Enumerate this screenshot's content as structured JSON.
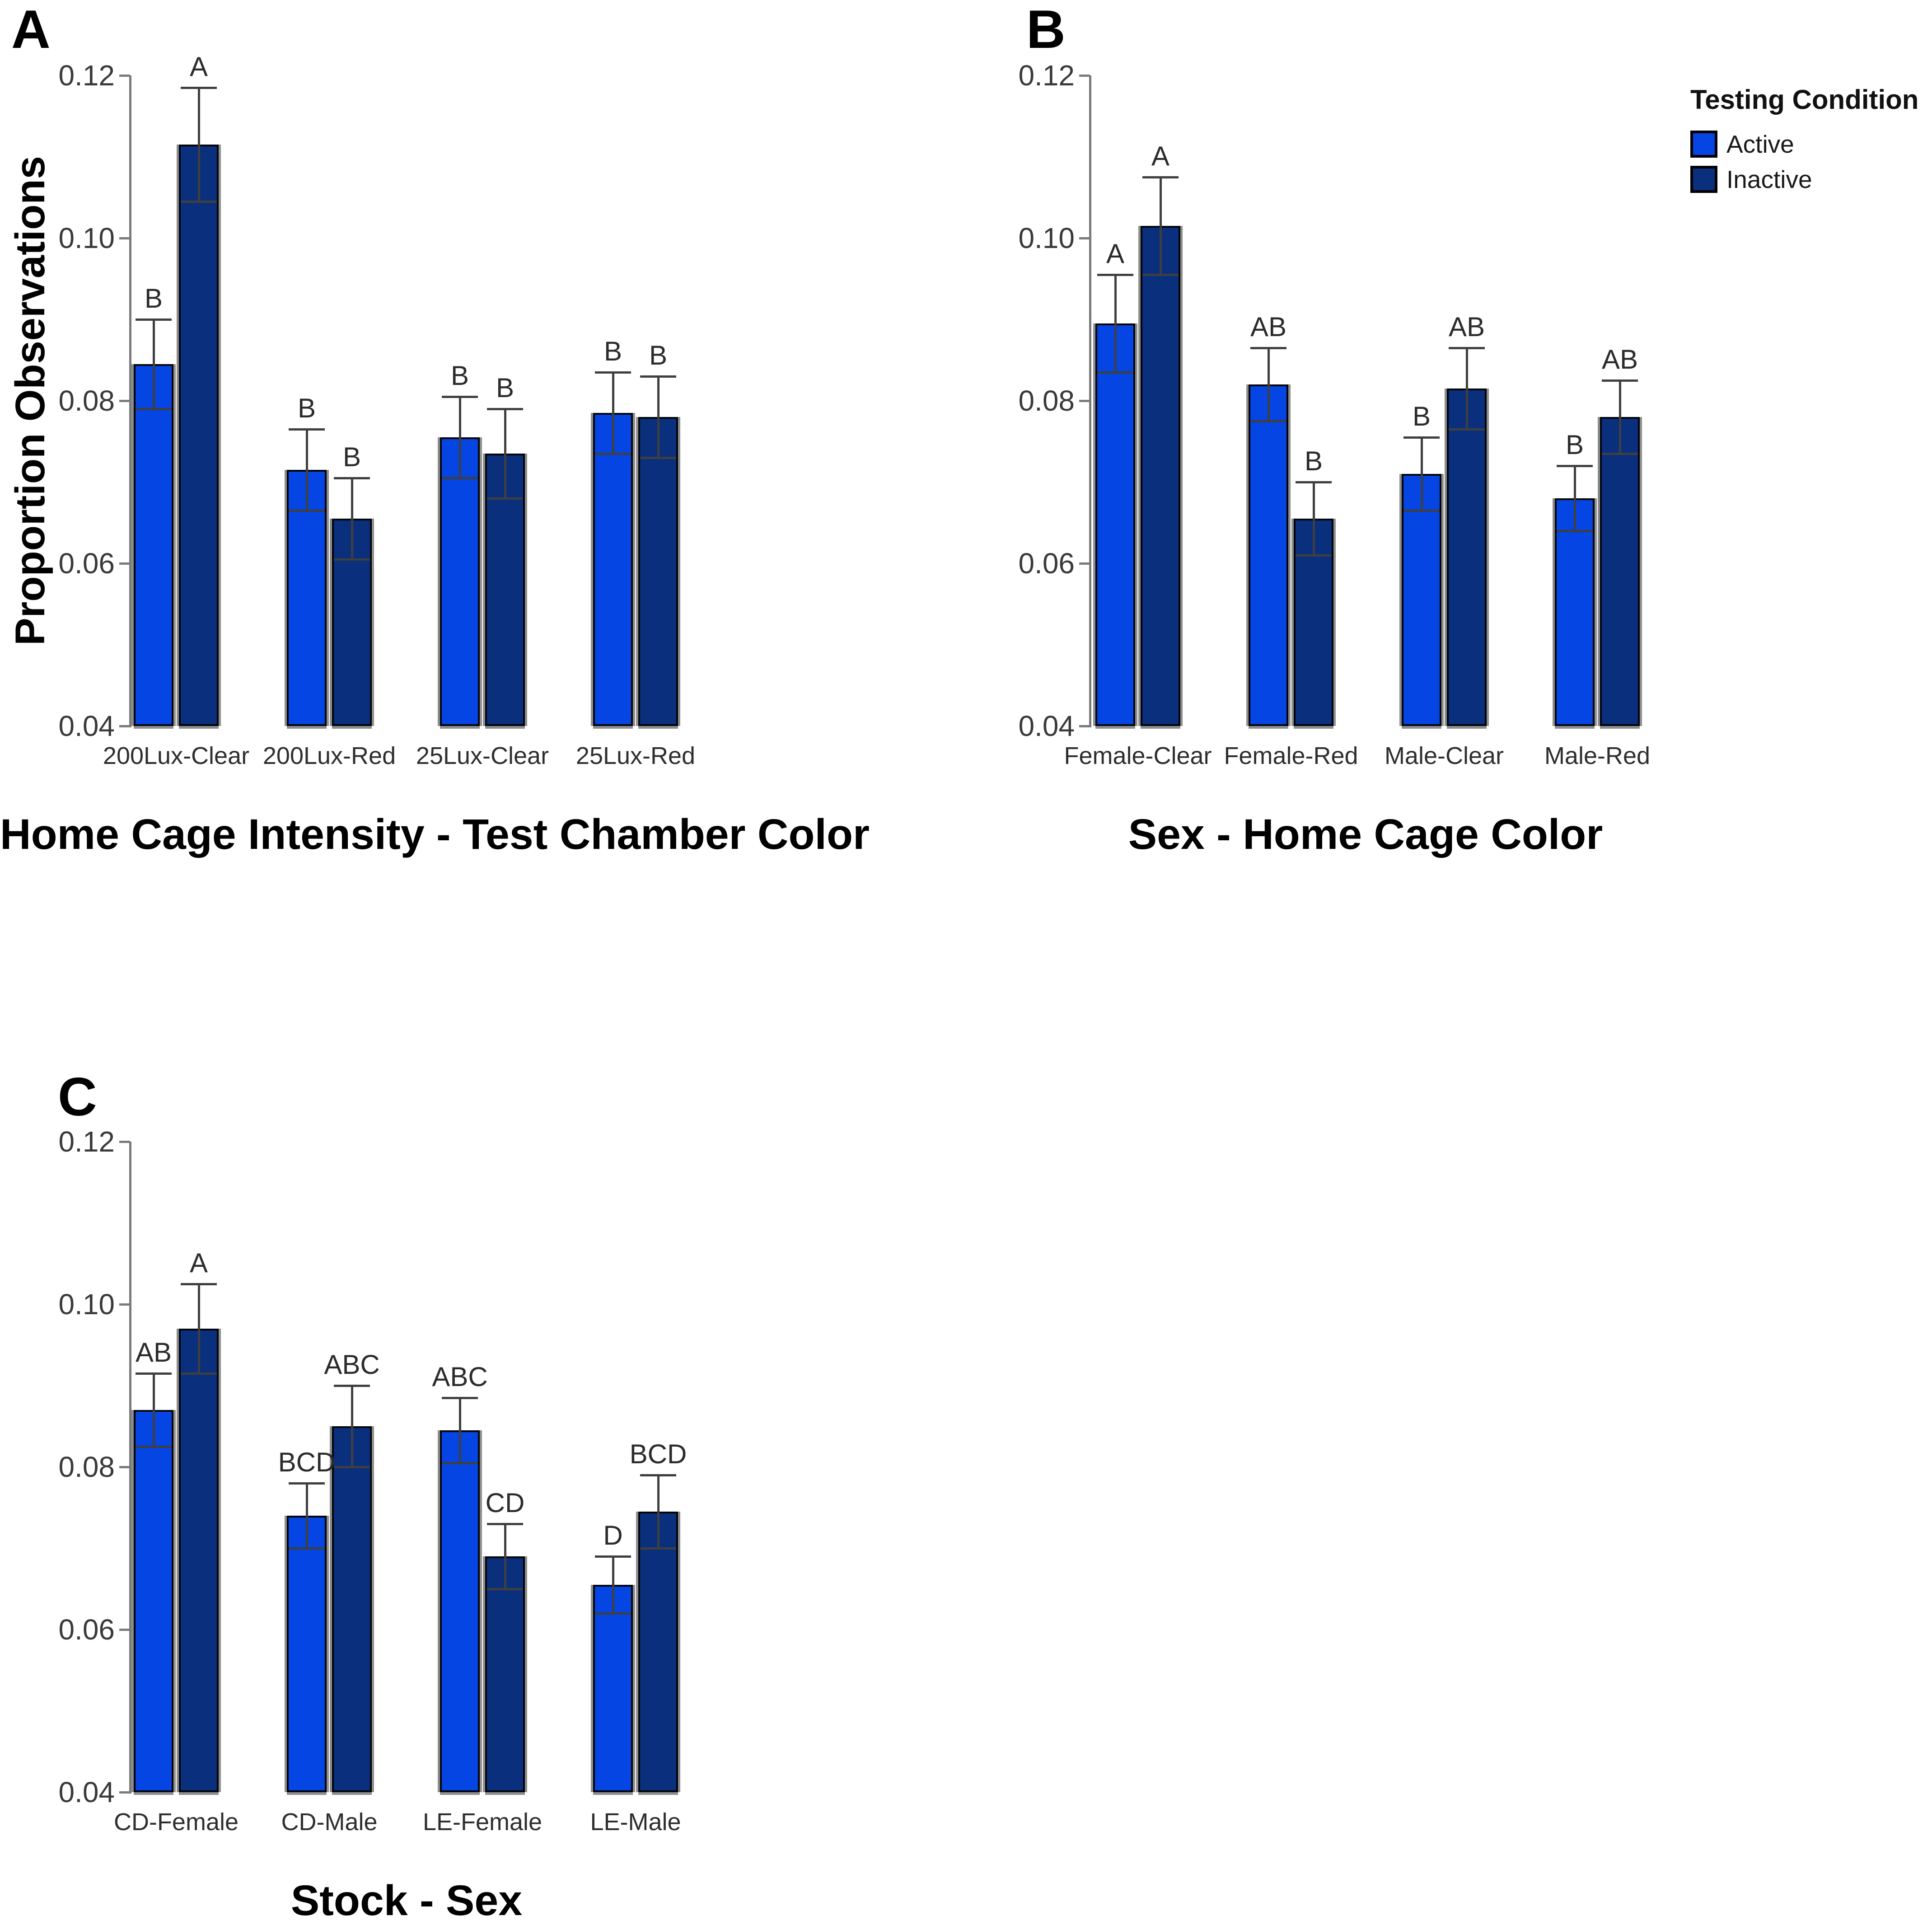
{
  "figure": {
    "background": "#FFFFFF",
    "y_axis_label": "Proportion Observations"
  },
  "legend": {
    "title": "Testing Condition",
    "position": "top-right",
    "items": [
      {
        "label": "Active",
        "color": "#0545E4"
      },
      {
        "label": "Inactive",
        "color": "#0A2F7D"
      }
    ]
  },
  "chart_data": [
    {
      "panel_label": "A",
      "type": "bar",
      "title": "Home Cage Intensity - Test Chamber Color",
      "ylabel": "Proportion Observations",
      "ylim": [
        0.04,
        0.12
      ],
      "yticks": [
        "0.12",
        "0.10",
        "0.08",
        "0.06",
        "0.04"
      ],
      "grid": false,
      "categories": [
        "200Lux-Clear",
        "200Lux-Red",
        "25Lux-Clear",
        "25Lux-Red"
      ],
      "series": [
        {
          "name": "Active",
          "color": "#0545E4",
          "values": [
            0.0845,
            0.0715,
            0.0755,
            0.0785
          ],
          "error_high": [
            0.09,
            0.0765,
            0.0805,
            0.0835
          ],
          "error_low": [
            0.079,
            0.0665,
            0.0705,
            0.0735
          ],
          "letters": [
            "B",
            "B",
            "B",
            "B"
          ]
        },
        {
          "name": "Inactive",
          "color": "#0A2F7D",
          "values": [
            0.1115,
            0.0655,
            0.0735,
            0.078
          ],
          "error_high": [
            0.1185,
            0.0705,
            0.079,
            0.083
          ],
          "error_low": [
            0.1045,
            0.0605,
            0.068,
            0.073
          ],
          "letters": [
            "A",
            "B",
            "B",
            "B"
          ]
        }
      ]
    },
    {
      "panel_label": "B",
      "type": "bar",
      "title": "Sex - Home Cage Color",
      "ylabel": "",
      "ylim": [
        0.04,
        0.12
      ],
      "yticks": [
        "0.12",
        "0.10",
        "0.08",
        "0.06",
        "0.04"
      ],
      "grid": false,
      "categories": [
        "Female-Clear",
        "Female-Red",
        "Male-Clear",
        "Male-Red"
      ],
      "series": [
        {
          "name": "Active",
          "color": "#0545E4",
          "values": [
            0.0895,
            0.082,
            0.071,
            0.068
          ],
          "error_high": [
            0.0955,
            0.0865,
            0.0755,
            0.072
          ],
          "error_low": [
            0.0835,
            0.0775,
            0.0665,
            0.064
          ],
          "letters": [
            "A",
            "AB",
            "B",
            "B"
          ]
        },
        {
          "name": "Inactive",
          "color": "#0A2F7D",
          "values": [
            0.1015,
            0.0655,
            0.0815,
            0.078
          ],
          "error_high": [
            0.1075,
            0.07,
            0.0865,
            0.0825
          ],
          "error_low": [
            0.0955,
            0.061,
            0.0765,
            0.0735
          ],
          "letters": [
            "A",
            "B",
            "AB",
            "AB"
          ]
        }
      ]
    },
    {
      "panel_label": "C",
      "type": "bar",
      "title": "Stock - Sex",
      "ylabel": "",
      "ylim": [
        0.04,
        0.12
      ],
      "yticks": [
        "0.12",
        "0.10",
        "0.08",
        "0.06",
        "0.04"
      ],
      "grid": false,
      "categories": [
        "CD-Female",
        "CD-Male",
        "LE-Female",
        "LE-Male"
      ],
      "series": [
        {
          "name": "Active",
          "color": "#0545E4",
          "values": [
            0.087,
            0.074,
            0.0845,
            0.0655
          ],
          "error_high": [
            0.0915,
            0.078,
            0.0885,
            0.069
          ],
          "error_low": [
            0.0825,
            0.07,
            0.0805,
            0.062
          ],
          "letters": [
            "AB",
            "BCD",
            "ABC",
            "D"
          ]
        },
        {
          "name": "Inactive",
          "color": "#0A2F7D",
          "values": [
            0.097,
            0.085,
            0.069,
            0.0745
          ],
          "error_high": [
            0.1025,
            0.09,
            0.073,
            0.079
          ],
          "error_low": [
            0.0915,
            0.08,
            0.065,
            0.07
          ],
          "letters": [
            "A",
            "ABC",
            "CD",
            "BCD"
          ]
        }
      ]
    }
  ]
}
